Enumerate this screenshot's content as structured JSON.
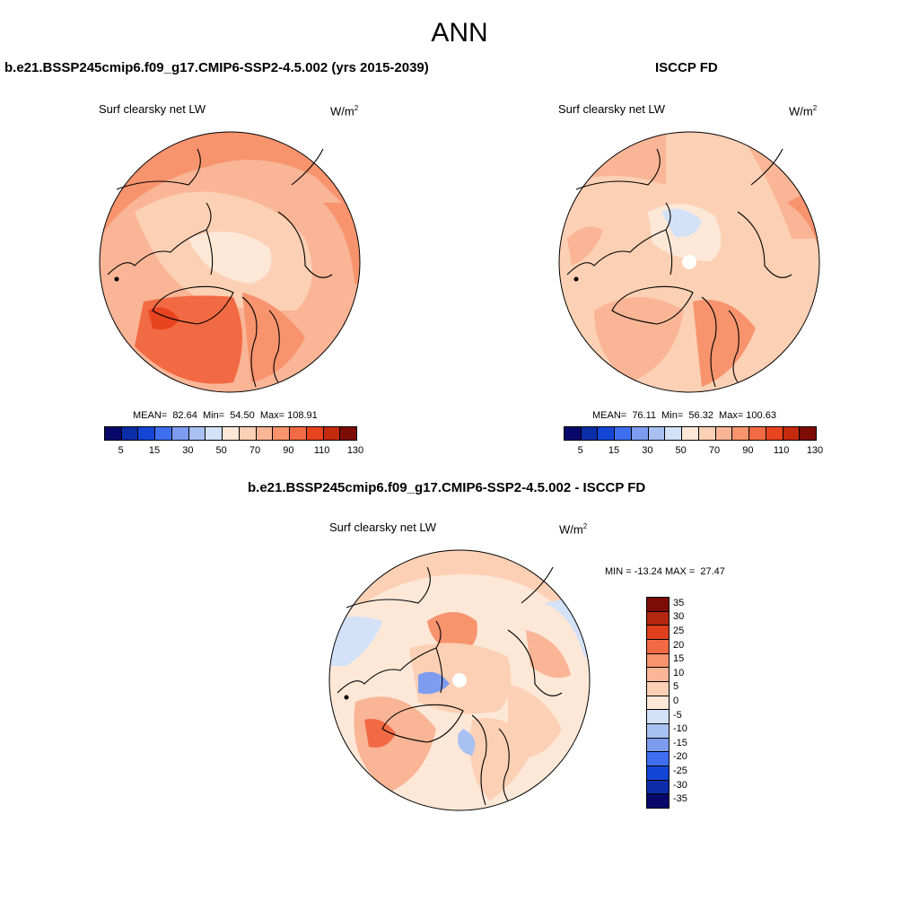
{
  "figure": {
    "title": "ANN"
  },
  "panels": {
    "model": {
      "title": "b.e21.BSSP245cmip6.f09_g17.CMIP6-SSP2-4.5.002 (yrs 2015-2039)",
      "variable": "Surf clearsky net LW",
      "units": "W/m",
      "units_exp": "2",
      "stats": "MEAN=  82.64  Min=  54.50  Max= 108.91"
    },
    "obs": {
      "title": "ISCCP FD",
      "variable": "Surf clearsky net LW",
      "units": "W/m",
      "units_exp": "2",
      "stats": "MEAN=  76.11  Min=  56.32  Max= 100.63"
    },
    "diff": {
      "title": "b.e21.BSSP245cmip6.f09_g17.CMIP6-SSP2-4.5.002 - ISCCP FD",
      "variable": "Surf clearsky net LW",
      "units": "W/m",
      "units_exp": "2",
      "stats": "MIN = -13.24 MAX =  27.47"
    }
  },
  "colorbars": {
    "absolute": {
      "colors": [
        "#08086b",
        "#0b2ea8",
        "#1446d6",
        "#3f6ff0",
        "#7d9cf0",
        "#a9c1f2",
        "#d3e2f7",
        "#fde8d8",
        "#fcd0b4",
        "#f9b596",
        "#f7936d",
        "#f26a43",
        "#e8441f",
        "#c42a0c",
        "#7d0c06"
      ],
      "tick_labels": [
        "5",
        "15",
        "30",
        "50",
        "70",
        "90",
        "110",
        "130"
      ]
    },
    "difference": {
      "colors": [
        "#7d0c06",
        "#b52610",
        "#e0401c",
        "#f26a43",
        "#f7936d",
        "#f9b596",
        "#fcd0b4",
        "#fde8d8",
        "#d3e2f7",
        "#a9c1f2",
        "#7d9cf0",
        "#3f6ff0",
        "#1446d6",
        "#0b2ea8",
        "#08086b"
      ],
      "tick_labels": [
        "35",
        "30",
        "25",
        "20",
        "15",
        "10",
        "5",
        "0",
        "-5",
        "-10",
        "-15",
        "-20",
        "-25",
        "-30",
        "-35"
      ]
    }
  },
  "colors": {
    "base_model": "#fbc0a0",
    "base_obs": "#fcd0b4",
    "base_diff": "#fde8d8"
  }
}
